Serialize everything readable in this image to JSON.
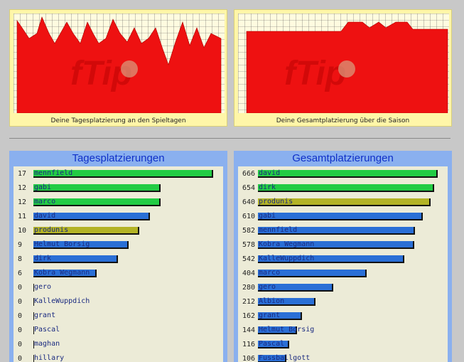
{
  "charts": {
    "daily": {
      "caption": "Deine Tagesplatzierung an den Spieltagen"
    },
    "season": {
      "caption": "Deine Gesamtplatzierung über die Saison"
    }
  },
  "watermark": "fTip",
  "colors": {
    "green": "#22cc44",
    "blue": "#2a6fd6",
    "olive": "#b3b325",
    "red": "#ee1111"
  },
  "daily_panel": {
    "title": "Tagesplatzierungen",
    "max": 17,
    "rows": [
      {
        "value": "17",
        "name": "mennfield",
        "color": "green"
      },
      {
        "value": "12",
        "name": "gabi",
        "color": "green"
      },
      {
        "value": "12",
        "name": "marco",
        "color": "green"
      },
      {
        "value": "11",
        "name": "david",
        "color": "blue"
      },
      {
        "value": "10",
        "name": "produnis",
        "color": "olive"
      },
      {
        "value": "9",
        "name": "Helmut Borsig",
        "color": "blue"
      },
      {
        "value": "8",
        "name": "dirk",
        "color": "blue"
      },
      {
        "value": "6",
        "name": "Kobra Wegmann",
        "color": "blue"
      },
      {
        "value": "0",
        "name": "gero",
        "color": "blue"
      },
      {
        "value": "0",
        "name": "KalleWuppdich",
        "color": "blue"
      },
      {
        "value": "0",
        "name": "grant",
        "color": "blue"
      },
      {
        "value": "0",
        "name": "Pascal",
        "color": "blue"
      },
      {
        "value": "0",
        "name": "maghan",
        "color": "blue"
      },
      {
        "value": "0",
        "name": "hillary",
        "color": "blue"
      }
    ]
  },
  "season_panel": {
    "title": "Gesamtplatzierungen",
    "max": 666,
    "rows": [
      {
        "value": "666",
        "name": "david",
        "color": "green"
      },
      {
        "value": "654",
        "name": "dirk",
        "color": "green"
      },
      {
        "value": "640",
        "name": "produnis",
        "color": "olive"
      },
      {
        "value": "610",
        "name": "gabi",
        "color": "blue"
      },
      {
        "value": "582",
        "name": "mennfield",
        "color": "blue"
      },
      {
        "value": "578",
        "name": "Kobra Wegmann",
        "color": "blue"
      },
      {
        "value": "542",
        "name": "KalleWuppdich",
        "color": "blue"
      },
      {
        "value": "404",
        "name": "marco",
        "color": "blue"
      },
      {
        "value": "280",
        "name": "gero",
        "color": "blue"
      },
      {
        "value": "212",
        "name": "Albion",
        "color": "blue"
      },
      {
        "value": "162",
        "name": "grant",
        "color": "blue"
      },
      {
        "value": "144",
        "name": "Helmut Borsig",
        "color": "blue"
      },
      {
        "value": "116",
        "name": "Pascal",
        "color": "blue"
      },
      {
        "value": "106",
        "name": "Fussballgott",
        "color": "blue"
      }
    ]
  }
}
